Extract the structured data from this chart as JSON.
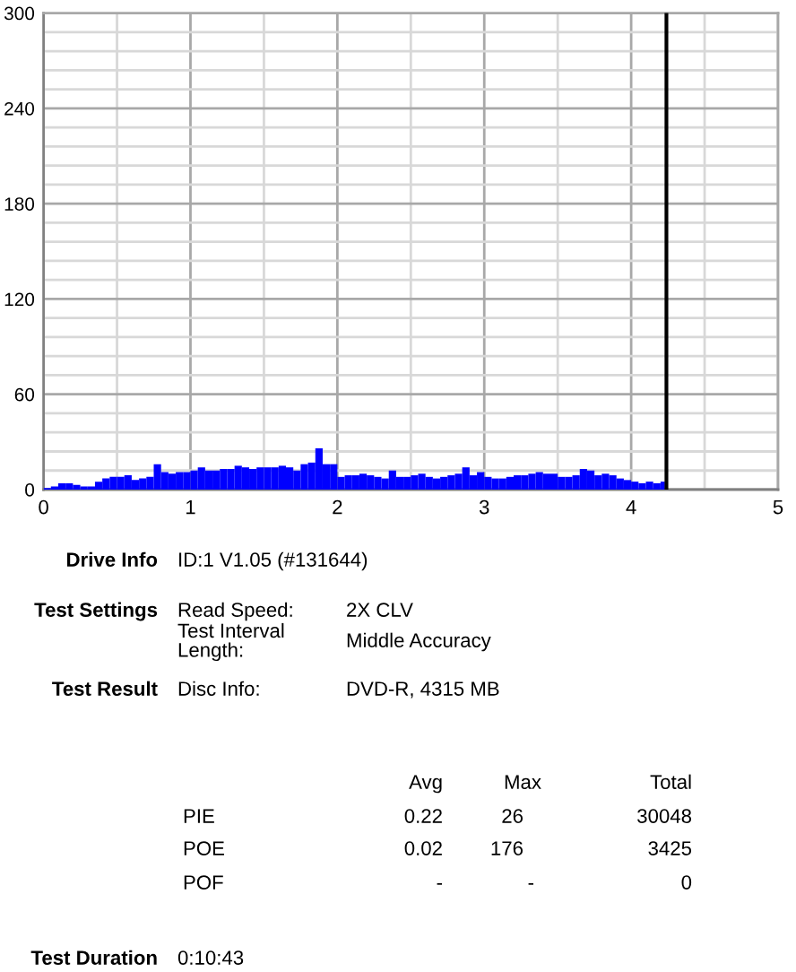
{
  "chart_data": {
    "type": "histogram",
    "color": "#0000ff",
    "bins": [
      0,
      0.05,
      0.1,
      0.15,
      0.2,
      0.25,
      0.3,
      0.35,
      0.4,
      0.45,
      0.5,
      0.55,
      0.6,
      0.65,
      0.7,
      0.75,
      0.8,
      0.85,
      0.9,
      0.95,
      1,
      1.05,
      1.1,
      1.15,
      1.2,
      1.25,
      1.3,
      1.35,
      1.4,
      1.45,
      1.5,
      1.55,
      1.6,
      1.65,
      1.7,
      1.75,
      1.8,
      1.85,
      1.9,
      1.95,
      2,
      2.05,
      2.1,
      2.15,
      2.2,
      2.25,
      2.3,
      2.35,
      2.4,
      2.45,
      2.5,
      2.55,
      2.6,
      2.65,
      2.7,
      2.75,
      2.8,
      2.85,
      2.9,
      2.95,
      3,
      3.05,
      3.1,
      3.15,
      3.2,
      3.25,
      3.3,
      3.35,
      3.4,
      3.45,
      3.5,
      3.55,
      3.6,
      3.65,
      3.7,
      3.75,
      3.8,
      3.85,
      3.9,
      3.95,
      4,
      4.05,
      4.1,
      4.15,
      4.2,
      4.23
    ],
    "values": [
      1,
      2,
      4,
      4,
      3,
      2,
      2,
      5,
      7,
      8,
      8,
      9,
      6,
      7,
      8,
      16,
      11,
      10,
      11,
      11,
      12,
      14,
      12,
      12,
      13,
      13,
      15,
      14,
      13,
      14,
      14,
      14,
      15,
      14,
      12,
      16,
      17,
      26,
      16,
      16,
      8,
      9,
      9,
      10,
      9,
      8,
      7,
      12,
      8,
      8,
      9,
      10,
      8,
      7,
      8,
      9,
      10,
      14,
      9,
      11,
      8,
      7,
      7,
      8,
      9,
      9,
      10,
      11,
      10,
      10,
      8,
      8,
      9,
      13,
      12,
      9,
      10,
      9,
      7,
      6,
      5,
      4,
      5,
      4,
      5
    ],
    "xlim": [
      0,
      5
    ],
    "xticks": [
      0,
      1,
      2,
      3,
      4,
      5
    ],
    "ylim": [
      0,
      300
    ],
    "yticks": [
      0,
      60,
      120,
      180,
      240,
      300
    ],
    "grid": true,
    "ref_lines": [
      {
        "axis": "x",
        "value": 4.24,
        "color": "#000000"
      }
    ],
    "annotations": [
      "Drive Info",
      "ID:1 V1.05 (#131644)",
      "Test Settings",
      "Read Speed:",
      "2X CLV",
      "Test Interval\nLength:",
      "Middle Accuracy",
      "Test Result",
      "Disc Info:",
      "DVD-R, 4315 MB",
      "Avg",
      "Max",
      "Total",
      "PIE",
      "0.22",
      "26",
      "30048",
      "POE",
      "0.02",
      "176",
      "3425",
      "POF",
      "-",
      "-",
      "0",
      "Test Duration",
      "0:10:43"
    ]
  }
}
